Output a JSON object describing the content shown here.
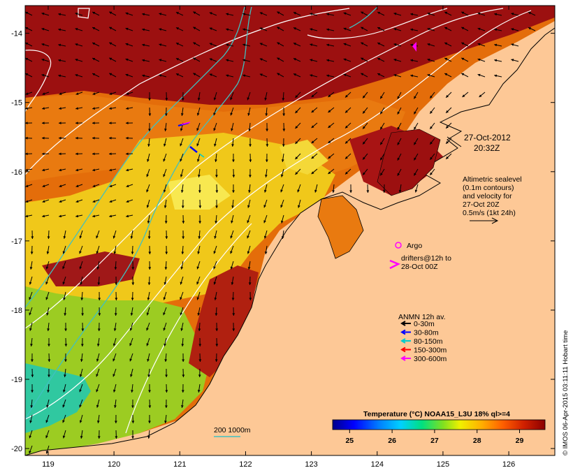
{
  "map": {
    "lon_ticks": [
      "119",
      "120",
      "121",
      "122",
      "123",
      "124",
      "125",
      "126"
    ],
    "lat_ticks": [
      "-14",
      "-15",
      "-16",
      "-17",
      "-18",
      "-19",
      "-20"
    ],
    "lon_range": [
      118.65,
      126.7
    ],
    "lat_range": [
      -20.1,
      -13.6
    ],
    "land_color": "#fdc896",
    "grid": false
  },
  "timestamp": {
    "date": "27-Oct-2012",
    "time": "20:32Z"
  },
  "altimetry_note": {
    "line1": "Altimetric sealevel",
    "line2": "(0.1m contours)",
    "line3": "and velocity for",
    "line4": "27-Oct 20Z",
    "line5": "0.5m/s (1kt 24h)"
  },
  "argo": {
    "label": "Argo",
    "color": "#ff00ff"
  },
  "drifters": {
    "line1": "drifters@12h to",
    "line2": "28-Oct 00Z",
    "color": "#ff00ff"
  },
  "anmn": {
    "title": "ANMN 12h av.",
    "items": [
      {
        "label": "0-30m",
        "color": "#000000"
      },
      {
        "label": "30-80m",
        "color": "#0000ff"
      },
      {
        "label": "80-150m",
        "color": "#00cccc"
      },
      {
        "label": "150-300m",
        "color": "#ff0000"
      },
      {
        "label": "300-600m",
        "color": "#ff00ff"
      }
    ]
  },
  "bathymetry": {
    "label": "200  1000m",
    "color": "#40c0c0"
  },
  "colorbar": {
    "title": "Temperature (°C) NOAA15_L3U 18% ql>=4",
    "ticks": [
      "25",
      "26",
      "27",
      "28",
      "29"
    ],
    "range": [
      24.6,
      29.6
    ]
  },
  "credit": "© IMOS 06-Apr-2015 03:11:11 Hobart time"
}
